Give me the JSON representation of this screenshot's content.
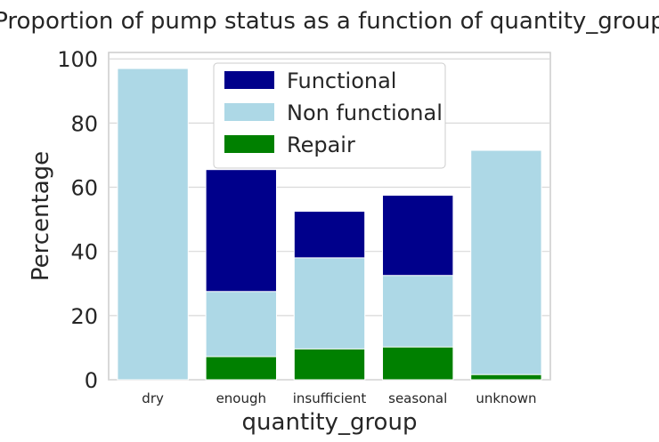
{
  "chart_data": {
    "type": "bar",
    "stacking": "overlaid",
    "title": "Proportion of pump status as a function of quantity_group",
    "xlabel": "quantity_group",
    "ylabel": "Percentage",
    "ylim": [
      0,
      102
    ],
    "yticks": [
      0,
      20,
      40,
      60,
      80,
      100
    ],
    "grid": true,
    "legend_position": "top-center",
    "categories": [
      "dry",
      "enough",
      "insufficient",
      "seasonal",
      "unknown"
    ],
    "series": [
      {
        "name": "Functional",
        "color": "#00008b",
        "values": [
          0.5,
          65.5,
          52.5,
          57.5,
          0
        ]
      },
      {
        "name": "Non functional",
        "color": "#add8e6",
        "values": [
          97,
          27.5,
          38,
          32.5,
          71.5
        ]
      },
      {
        "name": "Repair",
        "color": "#008000",
        "values": [
          0,
          7.2,
          9.6,
          10.2,
          1.6
        ]
      }
    ]
  }
}
